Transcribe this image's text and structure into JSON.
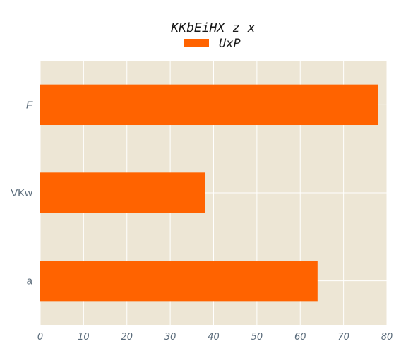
{
  "chart_data": {
    "type": "bar",
    "orientation": "horizontal",
    "title": "KKbEiHX z x",
    "xlabel": "",
    "ylabel": "",
    "categories": [
      "F",
      "VKw",
      "a"
    ],
    "series": [
      {
        "name": "UxP",
        "values": [
          78,
          38,
          64
        ],
        "color": "#ff6300"
      }
    ],
    "xlim": [
      0,
      80
    ],
    "x_ticks": [
      "0",
      "10",
      "20",
      "30",
      "40",
      "50",
      "60",
      "70",
      "80"
    ],
    "grid": true,
    "legend_position": "top-center",
    "plot_background": "#ede6d5"
  }
}
